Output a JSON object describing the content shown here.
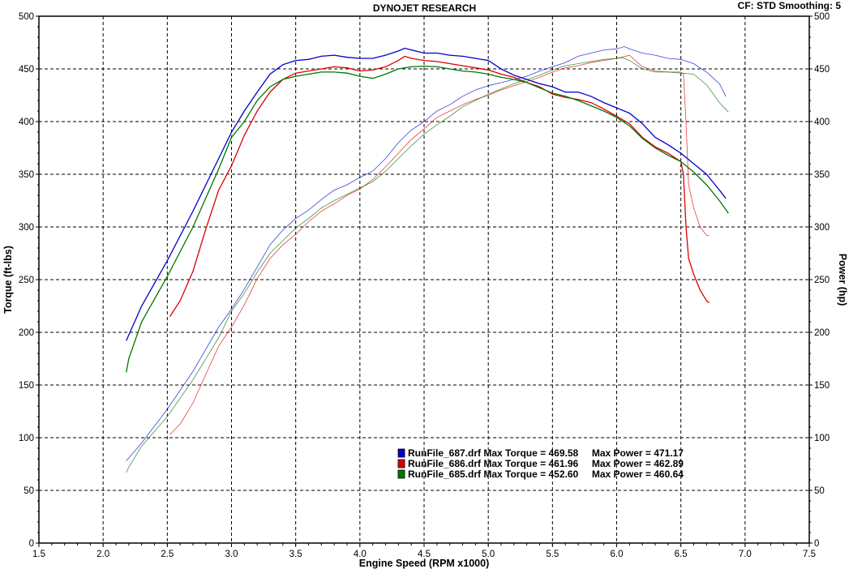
{
  "header": {
    "title": "DYNOJET RESEARCH",
    "cf_label": "CF: STD  Smoothing: 5"
  },
  "chart_data": {
    "type": "line",
    "title": "DYNOJET RESEARCH",
    "xlabel": "Engine Speed (RPM x1000)",
    "ylabel_left": "Torque (ft-lbs)",
    "ylabel_right": "Power (hp)",
    "xlim": [
      1.5,
      7.5
    ],
    "ylim": [
      0,
      500
    ],
    "x_ticks": [
      "1.5",
      "2.0",
      "2.5",
      "3.0",
      "3.5",
      "4.0",
      "4.5",
      "5.0",
      "5.5",
      "6.0",
      "6.5",
      "7.0",
      "7.5"
    ],
    "y_ticks": [
      "0",
      "50",
      "100",
      "150",
      "200",
      "250",
      "300",
      "350",
      "400",
      "450",
      "500"
    ],
    "grid": true,
    "legend_position": "bottom-center",
    "series": [
      {
        "name": "RunFile_687.drf",
        "color": "#0000cc",
        "legend_text": "RunFile_687.drf Max Torque = 469.58     Max Power = 471.17",
        "torque": [
          [
            2.18,
            192
          ],
          [
            2.3,
            225
          ],
          [
            2.5,
            268
          ],
          [
            2.7,
            315
          ],
          [
            2.9,
            365
          ],
          [
            3.0,
            390
          ],
          [
            3.1,
            410
          ],
          [
            3.2,
            428
          ],
          [
            3.3,
            445
          ],
          [
            3.4,
            454
          ],
          [
            3.5,
            458
          ],
          [
            3.6,
            459
          ],
          [
            3.7,
            462
          ],
          [
            3.8,
            463
          ],
          [
            3.9,
            461
          ],
          [
            4.0,
            460
          ],
          [
            4.1,
            460
          ],
          [
            4.2,
            463
          ],
          [
            4.3,
            467
          ],
          [
            4.35,
            469.58
          ],
          [
            4.4,
            468
          ],
          [
            4.5,
            465
          ],
          [
            4.6,
            465
          ],
          [
            4.7,
            463
          ],
          [
            4.8,
            462
          ],
          [
            4.9,
            460
          ],
          [
            5.0,
            458
          ],
          [
            5.1,
            450
          ],
          [
            5.2,
            444
          ],
          [
            5.3,
            440
          ],
          [
            5.4,
            436
          ],
          [
            5.5,
            433
          ],
          [
            5.6,
            428
          ],
          [
            5.7,
            428
          ],
          [
            5.8,
            424
          ],
          [
            5.9,
            418
          ],
          [
            6.0,
            413
          ],
          [
            6.1,
            408
          ],
          [
            6.2,
            398
          ],
          [
            6.3,
            385
          ],
          [
            6.4,
            378
          ],
          [
            6.5,
            370
          ],
          [
            6.6,
            360
          ],
          [
            6.7,
            350
          ],
          [
            6.8,
            335
          ],
          [
            6.85,
            327
          ]
        ],
        "power": [
          [
            2.18,
            78
          ],
          [
            2.3,
            95
          ],
          [
            2.5,
            127
          ],
          [
            2.7,
            163
          ],
          [
            2.9,
            205
          ],
          [
            3.0,
            222
          ],
          [
            3.1,
            241
          ],
          [
            3.2,
            262
          ],
          [
            3.3,
            283
          ],
          [
            3.4,
            297
          ],
          [
            3.5,
            308
          ],
          [
            3.6,
            316
          ],
          [
            3.7,
            326
          ],
          [
            3.8,
            335
          ],
          [
            3.9,
            340
          ],
          [
            4.0,
            347
          ],
          [
            4.1,
            353
          ],
          [
            4.2,
            365
          ],
          [
            4.3,
            380
          ],
          [
            4.4,
            392
          ],
          [
            4.5,
            400
          ],
          [
            4.6,
            410
          ],
          [
            4.7,
            416
          ],
          [
            4.8,
            424
          ],
          [
            4.9,
            430
          ],
          [
            5.0,
            434
          ],
          [
            5.1,
            437
          ],
          [
            5.2,
            440
          ],
          [
            5.3,
            443
          ],
          [
            5.4,
            448
          ],
          [
            5.5,
            452
          ],
          [
            5.6,
            456
          ],
          [
            5.7,
            462
          ],
          [
            5.8,
            465
          ],
          [
            5.9,
            468
          ],
          [
            6.0,
            469
          ],
          [
            6.06,
            471.17
          ],
          [
            6.1,
            469
          ],
          [
            6.2,
            465
          ],
          [
            6.3,
            463
          ],
          [
            6.4,
            460
          ],
          [
            6.5,
            459
          ],
          [
            6.6,
            455
          ],
          [
            6.7,
            447
          ],
          [
            6.8,
            436
          ],
          [
            6.85,
            424
          ]
        ]
      },
      {
        "name": "RunFile_686.drf",
        "color": "#dd0000",
        "legend_text": "RunFile_686.drf Max Torque = 461.96     Max Power = 462.89",
        "torque": [
          [
            2.52,
            215
          ],
          [
            2.6,
            230
          ],
          [
            2.7,
            258
          ],
          [
            2.8,
            298
          ],
          [
            2.9,
            335
          ],
          [
            3.0,
            358
          ],
          [
            3.1,
            387
          ],
          [
            3.2,
            410
          ],
          [
            3.3,
            428
          ],
          [
            3.4,
            440
          ],
          [
            3.5,
            446
          ],
          [
            3.6,
            448
          ],
          [
            3.7,
            450
          ],
          [
            3.8,
            452
          ],
          [
            3.9,
            451
          ],
          [
            4.0,
            448
          ],
          [
            4.1,
            449
          ],
          [
            4.2,
            452
          ],
          [
            4.3,
            458
          ],
          [
            4.35,
            461.96
          ],
          [
            4.4,
            460
          ],
          [
            4.5,
            458
          ],
          [
            4.6,
            457
          ],
          [
            4.7,
            455
          ],
          [
            4.8,
            453
          ],
          [
            4.9,
            451
          ],
          [
            5.0,
            449
          ],
          [
            5.1,
            445
          ],
          [
            5.2,
            442
          ],
          [
            5.3,
            437
          ],
          [
            5.4,
            433
          ],
          [
            5.5,
            426
          ],
          [
            5.6,
            423
          ],
          [
            5.7,
            421
          ],
          [
            5.8,
            418
          ],
          [
            5.9,
            412
          ],
          [
            6.0,
            405
          ],
          [
            6.1,
            398
          ],
          [
            6.2,
            385
          ],
          [
            6.3,
            376
          ],
          [
            6.4,
            370
          ],
          [
            6.5,
            362
          ],
          [
            6.52,
            350
          ],
          [
            6.54,
            300
          ],
          [
            6.56,
            270
          ],
          [
            6.6,
            255
          ],
          [
            6.65,
            240
          ],
          [
            6.7,
            230
          ],
          [
            6.72,
            228
          ]
        ],
        "power": [
          [
            2.52,
            103
          ],
          [
            2.6,
            113
          ],
          [
            2.7,
            133
          ],
          [
            2.8,
            160
          ],
          [
            2.9,
            187
          ],
          [
            3.0,
            205
          ],
          [
            3.1,
            226
          ],
          [
            3.2,
            251
          ],
          [
            3.3,
            270
          ],
          [
            3.4,
            283
          ],
          [
            3.5,
            293
          ],
          [
            3.6,
            305
          ],
          [
            3.7,
            315
          ],
          [
            3.8,
            322
          ],
          [
            3.9,
            330
          ],
          [
            4.0,
            336
          ],
          [
            4.1,
            345
          ],
          [
            4.2,
            357
          ],
          [
            4.3,
            370
          ],
          [
            4.4,
            383
          ],
          [
            4.5,
            393
          ],
          [
            4.6,
            404
          ],
          [
            4.7,
            410
          ],
          [
            4.8,
            416
          ],
          [
            4.9,
            421
          ],
          [
            5.0,
            425
          ],
          [
            5.1,
            430
          ],
          [
            5.2,
            434
          ],
          [
            5.3,
            438
          ],
          [
            5.4,
            442
          ],
          [
            5.5,
            447
          ],
          [
            5.6,
            451
          ],
          [
            5.7,
            453
          ],
          [
            5.8,
            456
          ],
          [
            5.9,
            458
          ],
          [
            6.0,
            460
          ],
          [
            6.1,
            462.89
          ],
          [
            6.2,
            452
          ],
          [
            6.3,
            448
          ],
          [
            6.4,
            447
          ],
          [
            6.5,
            447
          ],
          [
            6.52,
            445
          ],
          [
            6.54,
            400
          ],
          [
            6.56,
            340
          ],
          [
            6.6,
            318
          ],
          [
            6.65,
            300
          ],
          [
            6.7,
            292
          ],
          [
            6.72,
            292
          ]
        ]
      },
      {
        "name": "RunFile_685.drf",
        "color": "#007700",
        "legend_text": "RunFile_685.drf Max Torque = 452.60     Max Power = 460.64",
        "torque": [
          [
            2.18,
            162
          ],
          [
            2.2,
            175
          ],
          [
            2.3,
            210
          ],
          [
            2.5,
            253
          ],
          [
            2.7,
            300
          ],
          [
            2.9,
            355
          ],
          [
            3.0,
            385
          ],
          [
            3.1,
            400
          ],
          [
            3.2,
            420
          ],
          [
            3.3,
            433
          ],
          [
            3.4,
            440
          ],
          [
            3.5,
            443
          ],
          [
            3.6,
            445
          ],
          [
            3.7,
            447
          ],
          [
            3.8,
            447
          ],
          [
            3.9,
            446
          ],
          [
            4.0,
            443
          ],
          [
            4.1,
            441
          ],
          [
            4.2,
            445
          ],
          [
            4.3,
            450
          ],
          [
            4.4,
            452
          ],
          [
            4.5,
            452.6
          ],
          [
            4.6,
            452
          ],
          [
            4.7,
            450
          ],
          [
            4.8,
            448
          ],
          [
            4.9,
            447
          ],
          [
            5.0,
            445
          ],
          [
            5.1,
            442
          ],
          [
            5.2,
            440
          ],
          [
            5.3,
            437
          ],
          [
            5.4,
            432
          ],
          [
            5.5,
            427
          ],
          [
            5.6,
            424
          ],
          [
            5.7,
            420
          ],
          [
            5.8,
            415
          ],
          [
            5.9,
            410
          ],
          [
            6.0,
            404
          ],
          [
            6.1,
            396
          ],
          [
            6.2,
            384
          ],
          [
            6.3,
            375
          ],
          [
            6.4,
            368
          ],
          [
            6.5,
            362
          ],
          [
            6.6,
            352
          ],
          [
            6.7,
            340
          ],
          [
            6.8,
            325
          ],
          [
            6.87,
            313
          ]
        ],
        "power": [
          [
            2.18,
            67
          ],
          [
            2.2,
            72
          ],
          [
            2.3,
            92
          ],
          [
            2.5,
            120
          ],
          [
            2.7,
            155
          ],
          [
            2.9,
            195
          ],
          [
            3.0,
            220
          ],
          [
            3.1,
            237
          ],
          [
            3.2,
            257
          ],
          [
            3.3,
            275
          ],
          [
            3.4,
            287
          ],
          [
            3.5,
            299
          ],
          [
            3.6,
            308
          ],
          [
            3.7,
            318
          ],
          [
            3.8,
            325
          ],
          [
            3.9,
            331
          ],
          [
            4.0,
            337
          ],
          [
            4.1,
            343
          ],
          [
            4.2,
            353
          ],
          [
            4.3,
            365
          ],
          [
            4.4,
            377
          ],
          [
            4.5,
            388
          ],
          [
            4.6,
            397
          ],
          [
            4.7,
            405
          ],
          [
            4.8,
            414
          ],
          [
            4.9,
            420
          ],
          [
            5.0,
            426
          ],
          [
            5.1,
            431
          ],
          [
            5.2,
            436
          ],
          [
            5.3,
            440
          ],
          [
            5.4,
            444
          ],
          [
            5.5,
            449
          ],
          [
            5.6,
            453
          ],
          [
            5.7,
            455
          ],
          [
            5.8,
            457
          ],
          [
            5.9,
            459
          ],
          [
            6.0,
            460
          ],
          [
            6.05,
            460.64
          ],
          [
            6.1,
            458
          ],
          [
            6.2,
            450
          ],
          [
            6.3,
            447
          ],
          [
            6.4,
            447
          ],
          [
            6.5,
            446
          ],
          [
            6.6,
            445
          ],
          [
            6.7,
            435
          ],
          [
            6.8,
            418
          ],
          [
            6.87,
            409
          ]
        ]
      }
    ]
  }
}
